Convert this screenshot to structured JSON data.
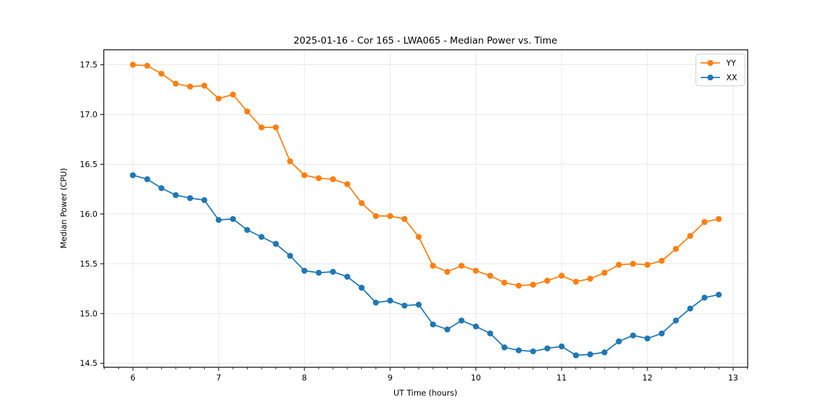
{
  "chart_data": {
    "type": "line",
    "title": "2025-01-16 - Cor 165 - LWA065 - Median Power vs. Time",
    "xlabel": "UT Time (hours)",
    "ylabel": "Median Power (CPU)",
    "xlim": [
      5.66,
      13.17
    ],
    "ylim": [
      14.46,
      17.65
    ],
    "xticks": [
      6,
      7,
      8,
      9,
      10,
      11,
      12,
      13
    ],
    "xticklabels": [
      "6",
      "7",
      "8",
      "9",
      "10",
      "11",
      "12",
      "13"
    ],
    "x_minor_step": 0.16667,
    "yticks": [
      14.5,
      15.0,
      15.5,
      16.0,
      16.5,
      17.0,
      17.5
    ],
    "yticklabels": [
      "14.5",
      "15.0",
      "15.5",
      "16.0",
      "16.5",
      "17.0",
      "17.5"
    ],
    "grid": true,
    "grid_color": "#e6e6e6",
    "legend_position": "upper right",
    "x": [
      6.0,
      6.167,
      6.333,
      6.5,
      6.667,
      6.833,
      7.0,
      7.167,
      7.333,
      7.5,
      7.667,
      7.833,
      8.0,
      8.167,
      8.333,
      8.5,
      8.667,
      8.833,
      9.0,
      9.167,
      9.333,
      9.5,
      9.667,
      9.833,
      10.0,
      10.167,
      10.333,
      10.5,
      10.667,
      10.833,
      11.0,
      11.167,
      11.333,
      11.5,
      11.667,
      11.833,
      12.0,
      12.167,
      12.333,
      12.5,
      12.667,
      12.833
    ],
    "series": [
      {
        "name": "XX",
        "color": "#1f77b4",
        "values": [
          16.39,
          16.35,
          16.26,
          16.19,
          16.16,
          16.14,
          15.94,
          15.95,
          15.84,
          15.77,
          15.7,
          15.58,
          15.43,
          15.41,
          15.42,
          15.37,
          15.26,
          15.11,
          15.13,
          15.08,
          15.09,
          14.89,
          14.84,
          14.93,
          14.87,
          14.8,
          14.66,
          14.63,
          14.62,
          14.65,
          14.67,
          14.58,
          14.59,
          14.61,
          14.72,
          14.78,
          14.75,
          14.8,
          14.93,
          15.05,
          15.16,
          15.19
        ]
      },
      {
        "name": "YY",
        "color": "#ff7f0e",
        "values": [
          17.5,
          17.49,
          17.41,
          17.31,
          17.28,
          17.29,
          17.16,
          17.2,
          17.03,
          16.87,
          16.87,
          16.53,
          16.39,
          16.36,
          16.35,
          16.3,
          16.11,
          15.98,
          15.98,
          15.95,
          15.77,
          15.48,
          15.42,
          15.48,
          15.43,
          15.38,
          15.31,
          15.28,
          15.29,
          15.33,
          15.38,
          15.32,
          15.35,
          15.41,
          15.49,
          15.5,
          15.49,
          15.53,
          15.65,
          15.78,
          15.92,
          15.95
        ]
      }
    ]
  }
}
